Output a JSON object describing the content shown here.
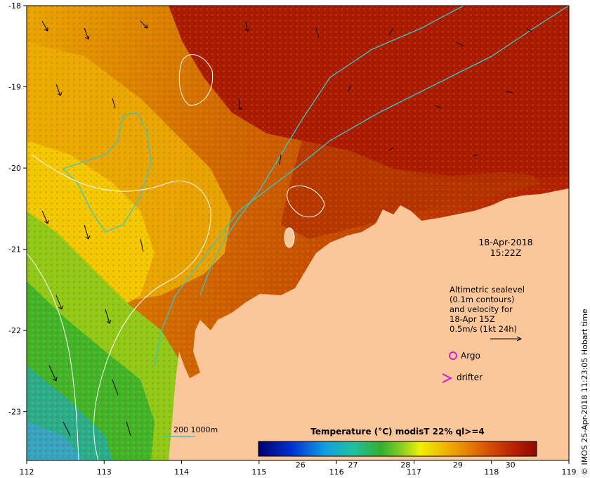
{
  "map": {
    "x_ticks": [
      "112",
      "113",
      "114",
      "115",
      "116",
      "117",
      "118",
      "119"
    ],
    "y_ticks": [
      "-18",
      "-19",
      "-20",
      "-21",
      "-22",
      "-23"
    ],
    "lon_range": [
      112,
      119
    ],
    "lat_range": [
      -23.6,
      -18
    ]
  },
  "obs_time": {
    "date": "18-Apr-2018",
    "time": "15:22Z"
  },
  "legend": {
    "lines": [
      "Altimetric sealevel",
      "(0.1m contours)",
      "and velocity for",
      "18-Apr 15Z",
      "0.5m/s (1kt 24h)"
    ],
    "argo_label": "Argo",
    "drifter_label": "drifter"
  },
  "depth_label": "200  1000m",
  "colorbar": {
    "title": "Temperature (°C) modisT 22% ql>=4",
    "ticks": [
      "26",
      "27",
      "28",
      "29",
      "30"
    ],
    "range": [
      25.2,
      30.5
    ]
  },
  "credit": "© IMOS 25-Apr-2018 11:23:05 Hobart time",
  "colors": {
    "land": "#fbc79a",
    "hot": "#a81a00",
    "warm": "#e07a00",
    "mid": "#f2c000",
    "cool": "#3bb82a",
    "cold": "#1d8fc8",
    "contour": "#ffffff",
    "isobath": "#33c9c9",
    "argo": "#d020d0"
  }
}
